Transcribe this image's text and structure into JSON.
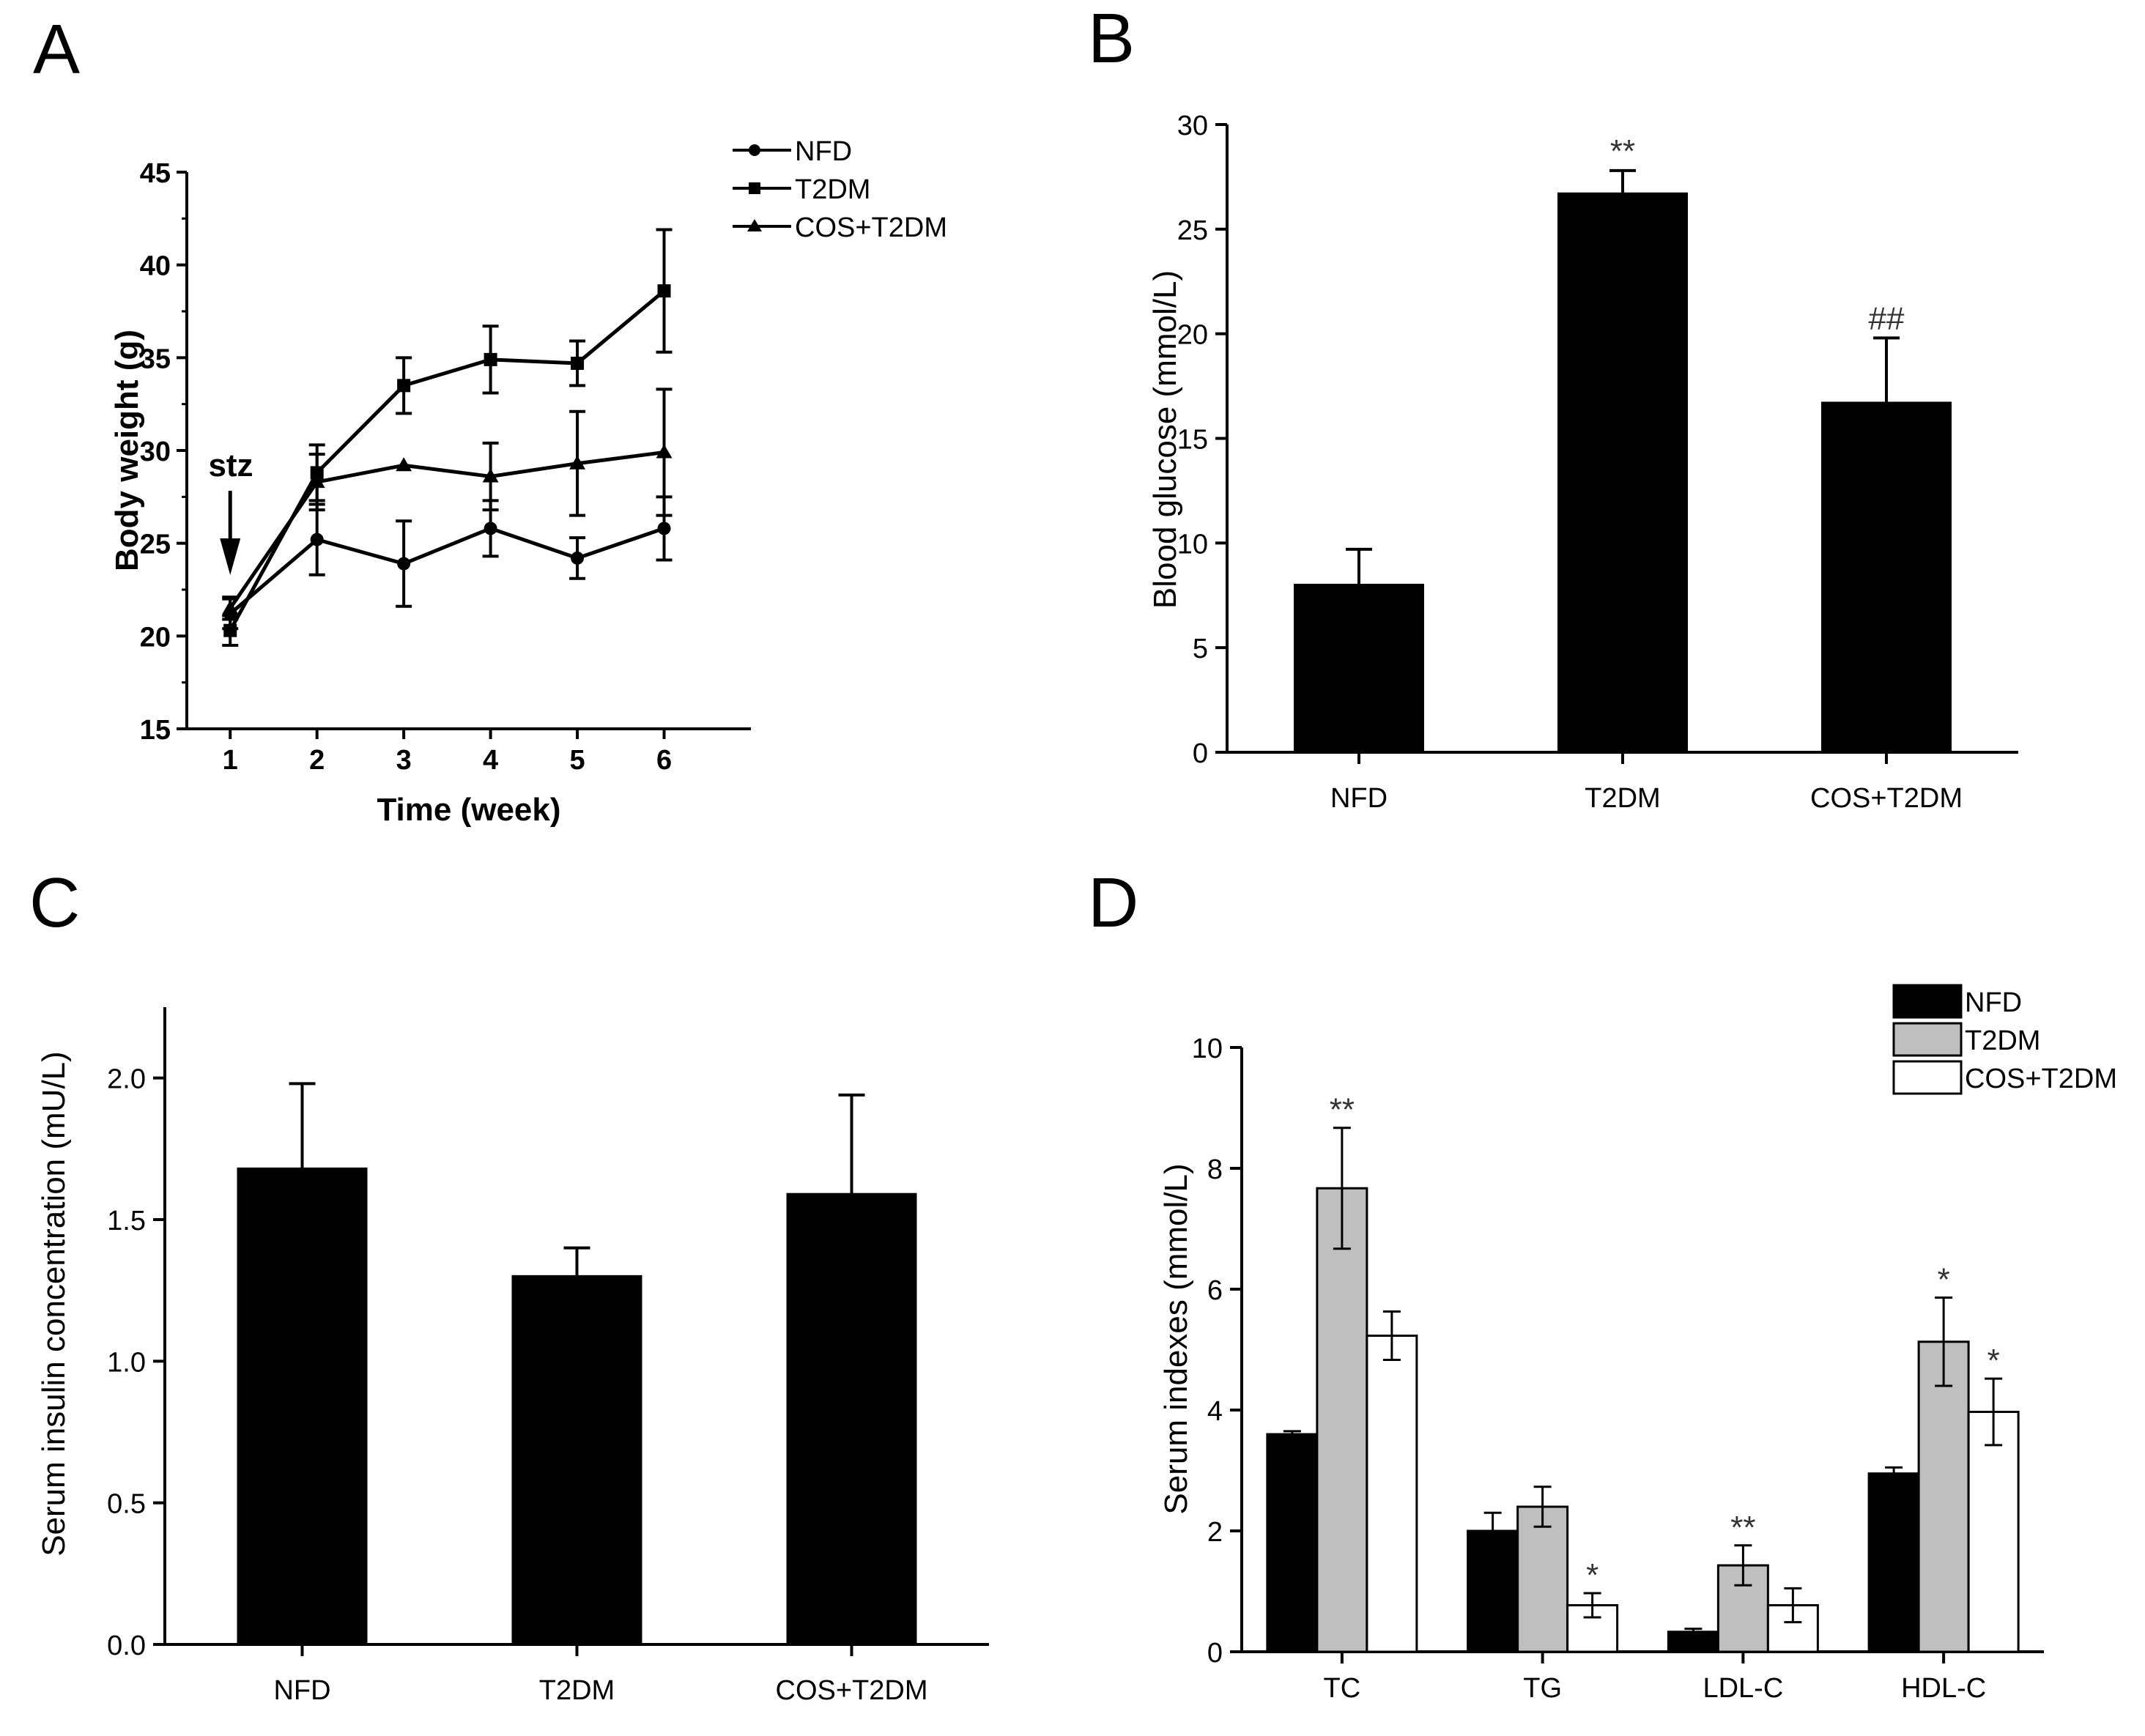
{
  "chart_data": [
    {
      "panel": "A",
      "type": "line",
      "xlabel": "Time (week)",
      "ylabel": "Body weight (g)",
      "x": [
        1,
        2,
        3,
        4,
        5,
        6
      ],
      "xlim": [
        0.5,
        7
      ],
      "ylim": [
        15,
        45
      ],
      "yticks": [
        15,
        20,
        25,
        30,
        35,
        40,
        45
      ],
      "annotation": "stz",
      "annotation_x": 1,
      "legend_position": "top-right",
      "series": [
        {
          "name": "NFD",
          "marker": "circle",
          "values": [
            21.2,
            25.2,
            23.9,
            25.8,
            24.2,
            25.8
          ],
          "errors": [
            0.8,
            1.9,
            2.3,
            1.5,
            1.1,
            1.7
          ]
        },
        {
          "name": "T2DM",
          "marker": "square",
          "values": [
            20.3,
            28.8,
            33.5,
            34.9,
            34.7,
            38.6
          ],
          "errors": [
            0.8,
            1.5,
            1.5,
            1.8,
            1.2,
            3.3
          ]
        },
        {
          "name": "COS+T2DM",
          "marker": "triangle",
          "values": [
            21.5,
            28.3,
            29.2,
            28.6,
            29.3,
            29.9
          ],
          "errors": [
            0.6,
            1.5,
            0.0,
            1.8,
            2.8,
            3.4
          ]
        }
      ]
    },
    {
      "panel": "B",
      "type": "bar",
      "ylabel": "Blood glucose (mmol/L)",
      "categories": [
        "NFD",
        "T2DM",
        "COS+T2DM"
      ],
      "values": [
        8.0,
        26.7,
        16.7
      ],
      "errors": [
        1.7,
        1.1,
        3.1
      ],
      "significance": [
        "",
        "**",
        "##"
      ],
      "ylim": [
        0,
        30
      ],
      "yticks": [
        0,
        5,
        10,
        15,
        20,
        25,
        30
      ]
    },
    {
      "panel": "C",
      "type": "bar",
      "ylabel": "Serum insulin concentration (mU/L)",
      "categories": [
        "NFD",
        "T2DM",
        "COS+T2DM"
      ],
      "values": [
        1.68,
        1.3,
        1.59
      ],
      "errors": [
        0.3,
        0.1,
        0.35
      ],
      "ylim": [
        0,
        2.25
      ],
      "yticks": [
        "0.0",
        "0.5",
        "1.0",
        "1.5",
        "2.0"
      ]
    },
    {
      "panel": "D",
      "type": "bar",
      "ylabel": "Serum indexes (mmol/L)",
      "categories": [
        "TC",
        "TG",
        "LDL-C",
        "HDL-C"
      ],
      "ylim": [
        0,
        10
      ],
      "yticks": [
        0,
        2,
        4,
        6,
        8,
        10
      ],
      "legend_position": "top-right",
      "series": [
        {
          "name": "NFD",
          "color": "#000000",
          "values": [
            3.6,
            2.0,
            0.33,
            2.95
          ],
          "errors": [
            0.05,
            0.3,
            0.05,
            0.1
          ],
          "significance": [
            "",
            "",
            "",
            ""
          ]
        },
        {
          "name": "T2DM",
          "color": "#bfbfbf",
          "values": [
            7.67,
            2.4,
            1.43,
            5.13
          ],
          "errors": [
            1.0,
            0.33,
            0.33,
            0.73
          ],
          "significance": [
            "**",
            "",
            "**",
            "*"
          ]
        },
        {
          "name": "COS+T2DM",
          "color": "#ffffff",
          "values": [
            5.23,
            0.77,
            0.77,
            3.97
          ],
          "errors": [
            0.4,
            0.2,
            0.28,
            0.55
          ],
          "significance": [
            "",
            "*",
            "",
            "*"
          ]
        }
      ]
    }
  ]
}
